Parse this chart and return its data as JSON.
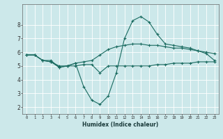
{
  "xlabel": "Humidex (Indice chaleur)",
  "bg_color": "#cce8ea",
  "grid_color": "#ffffff",
  "line_color": "#1a6b60",
  "xlim": [
    -0.5,
    23.5
  ],
  "ylim": [
    1.5,
    9.5
  ],
  "xticks": [
    0,
    1,
    2,
    3,
    4,
    5,
    6,
    7,
    8,
    9,
    10,
    11,
    12,
    13,
    14,
    15,
    16,
    17,
    18,
    19,
    20,
    21,
    22,
    23
  ],
  "yticks": [
    2,
    3,
    4,
    5,
    6,
    7,
    8
  ],
  "series1_x": [
    0,
    1,
    2,
    3,
    4,
    5,
    6,
    7,
    8,
    9,
    10,
    11,
    12,
    13,
    14,
    15,
    16,
    17,
    18,
    19,
    20,
    21,
    22,
    23
  ],
  "series1_y": [
    5.8,
    5.8,
    5.4,
    5.4,
    4.9,
    5.0,
    5.0,
    5.1,
    5.1,
    4.5,
    5.0,
    5.0,
    5.0,
    5.0,
    5.0,
    5.0,
    5.1,
    5.1,
    5.2,
    5.2,
    5.2,
    5.3,
    5.3,
    5.3
  ],
  "series2_x": [
    0,
    1,
    2,
    3,
    4,
    5,
    6,
    7,
    8,
    9,
    10,
    11,
    12,
    13,
    14,
    15,
    16,
    17,
    18,
    19,
    20,
    21,
    22,
    23
  ],
  "series2_y": [
    5.8,
    5.8,
    5.4,
    5.3,
    5.0,
    5.0,
    5.2,
    5.3,
    5.4,
    5.8,
    6.2,
    6.4,
    6.5,
    6.6,
    6.6,
    6.5,
    6.5,
    6.4,
    6.3,
    6.3,
    6.2,
    6.1,
    6.0,
    5.9
  ],
  "series3_x": [
    0,
    1,
    2,
    3,
    4,
    5,
    6,
    7,
    8,
    9,
    10,
    11,
    12,
    13,
    14,
    15,
    16,
    17,
    18,
    19,
    20,
    21,
    22,
    23
  ],
  "series3_y": [
    5.8,
    5.8,
    5.4,
    5.3,
    4.9,
    5.0,
    5.2,
    3.5,
    2.5,
    2.2,
    2.8,
    4.5,
    7.0,
    8.3,
    8.6,
    8.2,
    7.3,
    6.6,
    6.5,
    6.4,
    6.3,
    6.1,
    5.9,
    5.4
  ]
}
